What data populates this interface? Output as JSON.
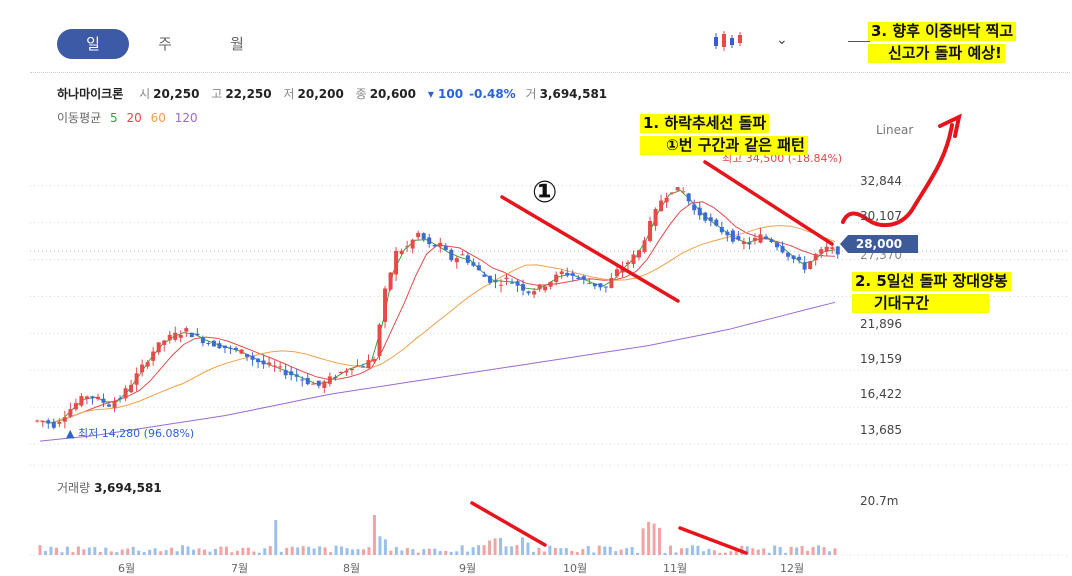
{
  "tabs": [
    {
      "label": "일",
      "active": true
    },
    {
      "label": "주",
      "active": false
    },
    {
      "label": "월",
      "active": false
    }
  ],
  "toolbar": {
    "chart_type_icon": "candlestick-icon",
    "dropdown_icon": "chevron-down-icon",
    "chevron": "⌄"
  },
  "stock": {
    "name": "하나마이크론",
    "open_label": "시",
    "open": "20,250",
    "high_label": "고",
    "high": "22,250",
    "low_label": "저",
    "low": "20,200",
    "close_label": "종",
    "close": "20,600",
    "change": "▾ 100",
    "change_pct": "-0.48%",
    "volume_label": "거",
    "volume": "3,694,581"
  },
  "moving_avg": {
    "label": "이동평균",
    "periods": [
      {
        "p": "5",
        "color": "#3aa33a"
      },
      {
        "p": "20",
        "color": "#e84a4a"
      },
      {
        "p": "60",
        "color": "#f0a04b"
      },
      {
        "p": "120",
        "color": "#9b6bd6"
      }
    ]
  },
  "scale_label": "Linear",
  "volume_panel": {
    "label": "거래량",
    "value": "3,694,581",
    "axis_label": "20.7m"
  },
  "current_price": "28,000",
  "min_marker": "▲ 최저 14,280 (96.08%)",
  "max_marker": "최고 34,500 (-18.84%)",
  "annotations": {
    "a1_line1": "1. 하락추세선 돌파",
    "a1_line2": "①번 구간과 같은 패턴",
    "a2_line1": "2. 5일선 돌파 장대양봉",
    "a2_line2": "기대구간",
    "a3_line1": "3. 향후 이중바닥 찍고",
    "a3_line2": "신고가 돌파 예상!",
    "circle_one": "①"
  },
  "chart_data": {
    "type": "candlestick",
    "y_axis": {
      "ticks": [
        32844,
        30107,
        27370,
        24633,
        21896,
        19159,
        16422,
        13685
      ],
      "labels": [
        "32,844",
        "30,107",
        "27,370",
        "",
        "21,896",
        "19,159",
        "16,422",
        "13,685"
      ],
      "range": [
        12500,
        35500
      ]
    },
    "x_axis": {
      "labels": [
        "6월",
        "7월",
        "8월",
        "9월",
        "10월",
        "11월",
        "12월"
      ]
    },
    "close_series": [
      15400,
      15100,
      15900,
      16700,
      17300,
      17000,
      16600,
      17100,
      18200,
      19400,
      20600,
      21400,
      21800,
      22100,
      21600,
      21200,
      21000,
      20700,
      20500,
      20000,
      19600,
      19400,
      19000,
      18700,
      18300,
      18000,
      18500,
      19000,
      19500,
      19500,
      20100,
      25000,
      27900,
      28300,
      29300,
      28400,
      28400,
      27400,
      27700,
      26900,
      26100,
      25600,
      25900,
      25500,
      25000,
      25300,
      25800,
      26400,
      26200,
      25800,
      25500,
      25300,
      26500,
      27200,
      28000,
      30000,
      31800,
      32600,
      32400,
      31000,
      30500,
      29700,
      29300,
      28600,
      28600,
      29100,
      28800,
      28100,
      27400,
      26800,
      27700,
      28200,
      28000
    ],
    "ma120_series": [
      13900,
      14100,
      14300,
      14600,
      14900,
      15200,
      15500,
      15800,
      16200,
      16600,
      17000,
      17400,
      17700,
      18000,
      18300,
      18600,
      18900,
      19200,
      19500,
      19800,
      20100,
      20400,
      20700,
      21000,
      21400,
      21800,
      22200,
      22700,
      23200,
      23700,
      24200
    ],
    "volume_axis_max": 20.7
  }
}
